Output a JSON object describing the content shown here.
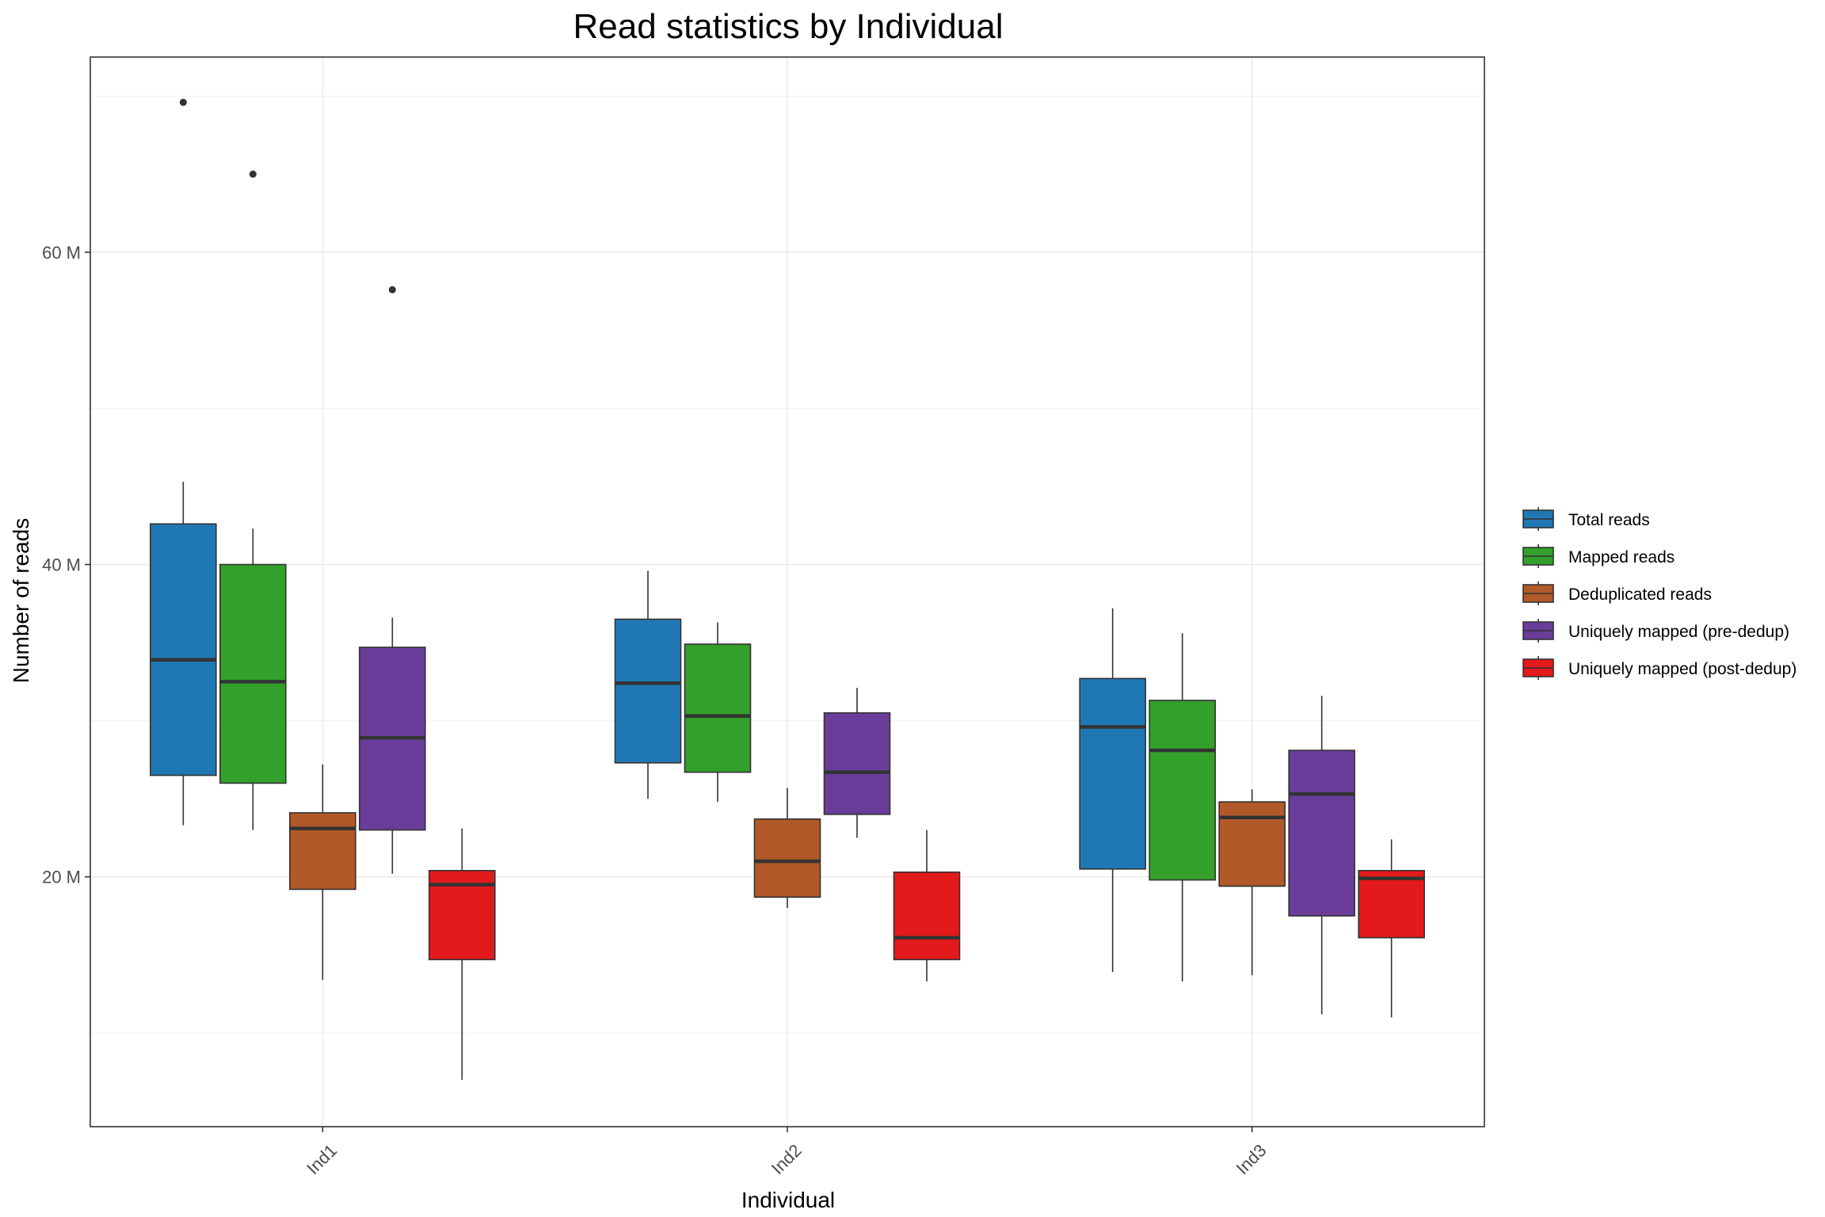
{
  "chart_data": {
    "type": "boxplot",
    "title": "Read statistics by Individual",
    "xlabel": "Individual",
    "ylabel": "Number of reads",
    "categories": [
      "Ind1",
      "Ind2",
      "Ind3"
    ],
    "ylim": [
      4000000,
      72500000
    ],
    "yticks": [
      20000000,
      40000000,
      60000000
    ],
    "ytick_labels": [
      "20 M",
      "40 M",
      "60 M"
    ],
    "grid": true,
    "legend_position": "right",
    "series": [
      {
        "name": "Total reads",
        "color": "#1F78B4",
        "boxes": [
          {
            "category": "Ind1",
            "whisker_low": 23300000,
            "q1": 26500000,
            "median": 33900000,
            "q3": 42600000,
            "whisker_high": 45300000,
            "outliers": [
              69600000
            ]
          },
          {
            "category": "Ind2",
            "whisker_low": 25000000,
            "q1": 27300000,
            "median": 32400000,
            "q3": 36500000,
            "whisker_high": 39600000,
            "outliers": []
          },
          {
            "category": "Ind3",
            "whisker_low": 13900000,
            "q1": 20500000,
            "median": 29600000,
            "q3": 32700000,
            "whisker_high": 37200000,
            "outliers": []
          }
        ]
      },
      {
        "name": "Mapped reads",
        "color": "#33A02C",
        "boxes": [
          {
            "category": "Ind1",
            "whisker_low": 23000000,
            "q1": 26000000,
            "median": 32500000,
            "q3": 40000000,
            "whisker_high": 42300000,
            "outliers": [
              65000000
            ]
          },
          {
            "category": "Ind2",
            "whisker_low": 24800000,
            "q1": 26700000,
            "median": 30300000,
            "q3": 34900000,
            "whisker_high": 36300000,
            "outliers": []
          },
          {
            "category": "Ind3",
            "whisker_low": 13300000,
            "q1": 19800000,
            "median": 28100000,
            "q3": 31300000,
            "whisker_high": 35600000,
            "outliers": []
          }
        ]
      },
      {
        "name": "Deduplicated reads",
        "color": "#B15928",
        "boxes": [
          {
            "category": "Ind1",
            "whisker_low": 13400000,
            "q1": 19200000,
            "median": 23100000,
            "q3": 24100000,
            "whisker_high": 27200000,
            "outliers": []
          },
          {
            "category": "Ind2",
            "whisker_low": 18000000,
            "q1": 18700000,
            "median": 21000000,
            "q3": 23700000,
            "whisker_high": 25700000,
            "outliers": []
          },
          {
            "category": "Ind3",
            "whisker_low": 13700000,
            "q1": 19400000,
            "median": 23800000,
            "q3": 24800000,
            "whisker_high": 25600000,
            "outliers": []
          }
        ]
      },
      {
        "name": "Uniquely mapped (pre-dedup)",
        "color": "#6A3D9A",
        "boxes": [
          {
            "category": "Ind1",
            "whisker_low": 20200000,
            "q1": 23000000,
            "median": 28900000,
            "q3": 34700000,
            "whisker_high": 36600000,
            "outliers": [
              57600000
            ]
          },
          {
            "category": "Ind2",
            "whisker_low": 22500000,
            "q1": 24000000,
            "median": 26700000,
            "q3": 30500000,
            "whisker_high": 32100000,
            "outliers": []
          },
          {
            "category": "Ind3",
            "whisker_low": 11200000,
            "q1": 17500000,
            "median": 25300000,
            "q3": 28100000,
            "whisker_high": 31600000,
            "outliers": []
          }
        ]
      },
      {
        "name": "Uniquely mapped (post-dedup)",
        "color": "#E31A1C",
        "boxes": [
          {
            "category": "Ind1",
            "whisker_low": 7000000,
            "q1": 14700000,
            "median": 19500000,
            "q3": 20400000,
            "whisker_high": 23100000,
            "outliers": []
          },
          {
            "category": "Ind2",
            "whisker_low": 13300000,
            "q1": 14700000,
            "median": 16100000,
            "q3": 20300000,
            "whisker_high": 23000000,
            "outliers": []
          },
          {
            "category": "Ind3",
            "whisker_low": 11000000,
            "q1": 16100000,
            "median": 19900000,
            "q3": 20400000,
            "whisker_high": 22400000,
            "outliers": []
          }
        ]
      }
    ]
  }
}
